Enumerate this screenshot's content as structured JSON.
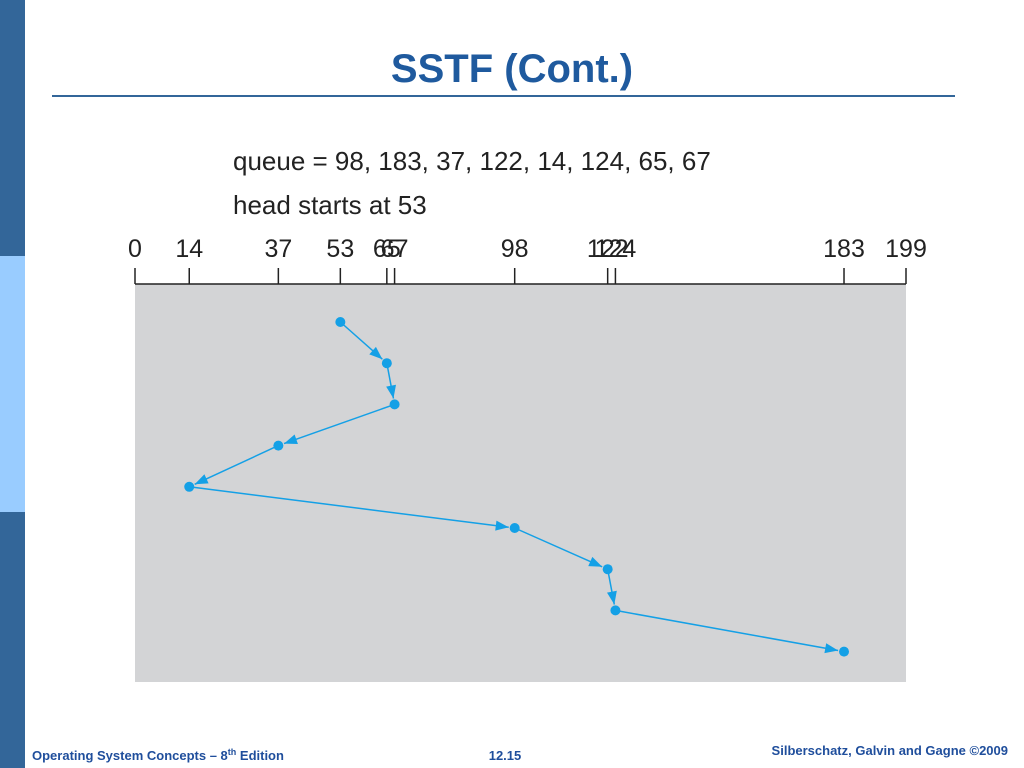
{
  "slide": {
    "title": "SSTF (Cont.)",
    "queue": "queue = 98, 183, 37, 122, 14, 124, 65, 67",
    "head": "head starts at 53",
    "footer": {
      "book": "Operating System Concepts – 8",
      "sup": "th",
      "edition": " Edition",
      "page": "12.15",
      "authors": "Silberschatz, Galvin and Gagne ©2009"
    }
  },
  "chart_data": {
    "type": "sstf",
    "x": [
      53,
      65,
      67,
      37,
      14,
      98,
      122,
      124,
      183
    ],
    "xlim": [
      0,
      199
    ],
    "xticks": [
      0,
      14,
      37,
      53,
      65,
      67,
      98,
      122,
      124,
      183,
      199
    ],
    "color": "#14a0e6"
  }
}
